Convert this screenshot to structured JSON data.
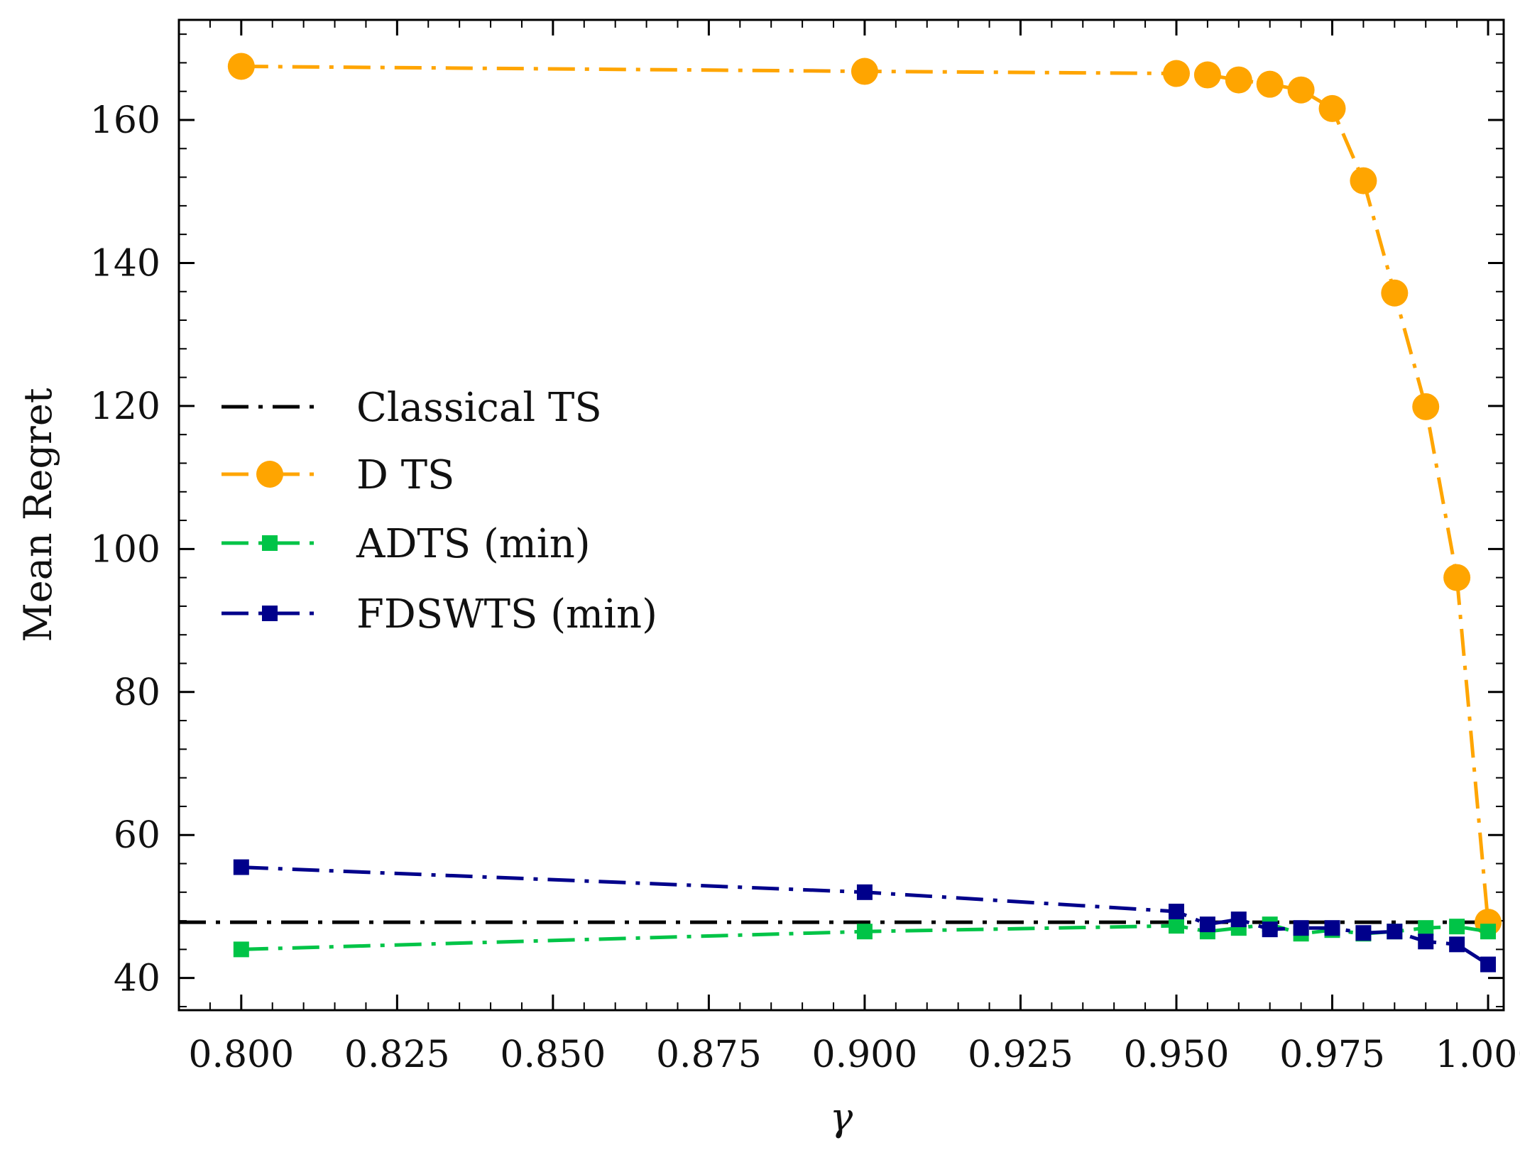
{
  "chart_data": {
    "type": "line",
    "title": "",
    "xlabel": "γ",
    "ylabel": "Mean Regret",
    "xlim": [
      0.79,
      1.0025
    ],
    "ylim": [
      35.5,
      174
    ],
    "xticks": [
      0.8,
      0.825,
      0.85,
      0.875,
      0.9,
      0.925,
      0.95,
      0.975,
      1.0
    ],
    "xtick_labels": [
      "0.800",
      "0.825",
      "0.850",
      "0.875",
      "0.900",
      "0.925",
      "0.950",
      "0.975",
      "1.000"
    ],
    "yticks": [
      40,
      60,
      80,
      100,
      120,
      140,
      160
    ],
    "ytick_labels": [
      "40",
      "60",
      "80",
      "100",
      "120",
      "140",
      "160"
    ],
    "grid": false,
    "legend_position": "center-left",
    "series": [
      {
        "name": "Classical TS",
        "color": "#000000",
        "linestyle": "dash-dot",
        "marker": "none",
        "x": [
          0.79,
          1.0025
        ],
        "y": [
          47.8,
          47.8
        ]
      },
      {
        "name": "D TS",
        "color": "#FFA500",
        "linestyle": "dash-dot",
        "marker": "circle",
        "x": [
          0.8,
          0.9,
          0.95,
          0.955,
          0.96,
          0.965,
          0.97,
          0.975,
          0.98,
          0.985,
          0.99,
          0.995,
          1.0
        ],
        "y": [
          167.5,
          166.8,
          166.5,
          166.3,
          165.6,
          165.0,
          164.2,
          161.6,
          151.5,
          135.8,
          119.9,
          96.0,
          47.8
        ]
      },
      {
        "name": "ADTS (min)",
        "color": "#00C447",
        "linestyle": "dash-dot",
        "marker": "square",
        "x": [
          0.8,
          0.9,
          0.95,
          0.955,
          0.96,
          0.965,
          0.97,
          0.975,
          0.98,
          0.985,
          0.99,
          0.995,
          1.0
        ],
        "y": [
          44.0,
          46.5,
          47.3,
          46.5,
          47.0,
          47.5,
          46.2,
          46.7,
          46.2,
          46.5,
          47.0,
          47.2,
          46.5
        ]
      },
      {
        "name": "FDSWTS (min)",
        "color": "#00008B",
        "linestyle": "dash-dot",
        "marker": "square",
        "x": [
          0.8,
          0.9,
          0.95,
          0.955,
          0.96,
          0.965,
          0.97,
          0.975,
          0.98,
          0.985,
          0.99,
          0.995,
          1.0
        ],
        "y": [
          55.5,
          52.0,
          49.3,
          47.5,
          48.2,
          46.8,
          47.0,
          47.0,
          46.3,
          46.5,
          45.1,
          44.7,
          41.9
        ]
      }
    ]
  }
}
